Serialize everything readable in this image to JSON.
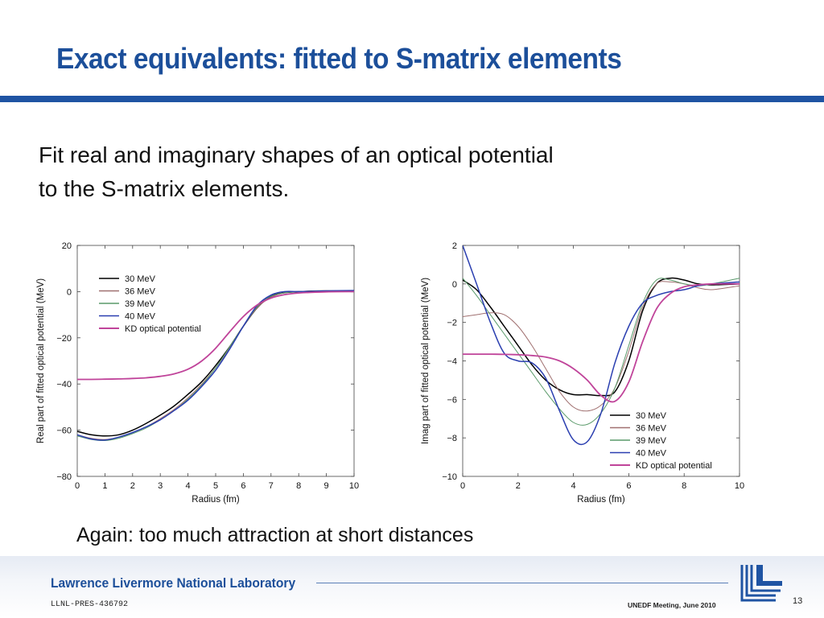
{
  "slide": {
    "title": "Exact equivalents: fitted to S-matrix elements",
    "body_lines": [
      "Fit real and imaginary shapes of an optical potential",
      "to the S-matrix elements."
    ],
    "note": "Again: too much attraction at short distances"
  },
  "footer": {
    "lab_name": "Lawrence Livermore National Laboratory",
    "doc_id": "LLNL-PRES-436792",
    "meeting": "UNEDF Meeting, June 2010",
    "page": "13",
    "logo_icon": "llnl-logo-icon",
    "brand_color": "#1c4f9a"
  },
  "chart_data": [
    {
      "type": "line",
      "xlabel": "Radius (fm)",
      "ylabel": "Real part of fitted optical potential (MeV)",
      "xlim": [
        0,
        10
      ],
      "ylim": [
        -80,
        20
      ],
      "xticks": [
        0,
        1,
        2,
        3,
        4,
        5,
        6,
        7,
        8,
        9,
        10
      ],
      "yticks": [
        20,
        0,
        -20,
        -40,
        -60,
        -80
      ],
      "ytick_labels": [
        "20",
        "0",
        "−20",
        "−40",
        "−60",
        "−80"
      ],
      "grid": false,
      "legend_position": "top-left",
      "series": [
        {
          "name": "30 MeV",
          "color": "#000000",
          "x": [
            0,
            0.5,
            1,
            1.5,
            2,
            2.5,
            3,
            3.5,
            4,
            4.5,
            5,
            5.5,
            6,
            6.5,
            7,
            7.5,
            8,
            9,
            10
          ],
          "y": [
            -60.5,
            -62,
            -62.5,
            -62,
            -60,
            -57,
            -53.5,
            -49.5,
            -44.5,
            -39,
            -32,
            -24,
            -15,
            -7,
            -2,
            -0.5,
            0,
            0.3,
            0
          ]
        },
        {
          "name": "36 MeV",
          "color": "#a07070",
          "x": [
            0,
            0.5,
            1,
            1.5,
            2,
            2.5,
            3,
            3.5,
            4,
            4.5,
            5,
            5.5,
            6,
            6.5,
            7,
            7.5,
            8,
            9,
            10
          ],
          "y": [
            -62,
            -63.5,
            -64,
            -63,
            -61,
            -58.5,
            -55,
            -51,
            -46,
            -40,
            -33,
            -24.5,
            -15,
            -7,
            -2.5,
            -0.5,
            0,
            0.3,
            0.5
          ]
        },
        {
          "name": "39 MeV",
          "color": "#5a9a6a",
          "x": [
            0,
            0.5,
            1,
            1.5,
            2,
            2.5,
            3,
            3.5,
            4,
            4.5,
            5,
            5.5,
            6,
            6.5,
            7,
            7.5,
            8,
            9,
            10
          ],
          "y": [
            -62.5,
            -64,
            -64.5,
            -63.5,
            -61.5,
            -59,
            -55.5,
            -51.5,
            -46.5,
            -40.5,
            -33,
            -24,
            -15,
            -6.5,
            -2,
            -0.5,
            0,
            0.3,
            0.5
          ]
        },
        {
          "name": "40 MeV",
          "color": "#2b3fb0",
          "x": [
            0,
            0.5,
            1,
            1.5,
            2,
            2.5,
            3,
            3.5,
            4,
            4.5,
            5,
            5.5,
            6,
            6.5,
            7,
            7.5,
            8,
            9,
            10
          ],
          "y": [
            -62,
            -63.8,
            -64.3,
            -63,
            -61,
            -58.5,
            -55.5,
            -51.5,
            -47,
            -41,
            -34,
            -25,
            -15,
            -6,
            -1.5,
            0,
            0,
            0.3,
            0.5
          ]
        },
        {
          "name": "KD optical potential",
          "color": "#c0449a",
          "x": [
            0,
            0.5,
            1,
            1.5,
            2,
            2.5,
            3,
            3.5,
            4,
            4.5,
            5,
            5.5,
            6,
            6.5,
            7,
            7.5,
            8,
            9,
            10
          ],
          "y": [
            -38,
            -38,
            -37.9,
            -37.8,
            -37.6,
            -37.3,
            -36.7,
            -35.6,
            -33.6,
            -30,
            -24.5,
            -17.5,
            -10.8,
            -5.8,
            -2.8,
            -1.3,
            -0.6,
            -0.1,
            0
          ]
        }
      ]
    },
    {
      "type": "line",
      "xlabel": "Radius (fm)",
      "ylabel": "Imag part of fitted optical potential (MeV)",
      "xlim": [
        0,
        10
      ],
      "ylim": [
        -10,
        2
      ],
      "xticks": [
        0,
        2,
        4,
        6,
        8,
        10
      ],
      "yticks": [
        2,
        0,
        -2,
        -4,
        -6,
        -8,
        -10
      ],
      "ytick_labels": [
        "2",
        "0",
        "−2",
        "−4",
        "−6",
        "−8",
        "−10"
      ],
      "grid": false,
      "legend_position": "bottom-right",
      "series": [
        {
          "name": "30 MeV",
          "color": "#000000",
          "x": [
            0,
            0.5,
            1,
            1.5,
            2,
            2.5,
            3,
            3.5,
            4,
            4.5,
            5,
            5.5,
            6,
            6.5,
            7,
            7.5,
            8,
            8.5,
            9,
            10
          ],
          "y": [
            0.2,
            -0.3,
            -1.2,
            -2.2,
            -3.2,
            -4.2,
            -5.0,
            -5.5,
            -5.75,
            -5.75,
            -5.8,
            -5.6,
            -4.0,
            -1.4,
            0.0,
            0.3,
            0.2,
            0.0,
            -0.05,
            0.0
          ]
        },
        {
          "name": "36 MeV",
          "color": "#a07070",
          "x": [
            0,
            0.5,
            1,
            1.5,
            2,
            2.5,
            3,
            3.5,
            4,
            4.5,
            5,
            5.5,
            6,
            6.5,
            7,
            7.5,
            8,
            8.5,
            9,
            10
          ],
          "y": [
            -1.7,
            -1.6,
            -1.5,
            -1.6,
            -2.2,
            -3.2,
            -4.4,
            -5.6,
            -6.4,
            -6.6,
            -6.3,
            -5.4,
            -3.5,
            -1.2,
            0.0,
            0.1,
            0.0,
            -0.2,
            -0.3,
            -0.1
          ]
        },
        {
          "name": "39 MeV",
          "color": "#5a9a6a",
          "x": [
            0,
            0.5,
            1,
            1.5,
            2,
            2.5,
            3,
            3.5,
            4,
            4.5,
            5,
            5.5,
            6,
            6.5,
            7,
            7.5,
            8,
            8.5,
            9,
            10
          ],
          "y": [
            0.3,
            -0.6,
            -1.6,
            -2.6,
            -3.6,
            -4.6,
            -5.6,
            -6.5,
            -7.2,
            -7.3,
            -6.7,
            -5.4,
            -3.2,
            -1.0,
            0.2,
            0.2,
            0.0,
            -0.1,
            0.0,
            0.3
          ]
        },
        {
          "name": "40 MeV",
          "color": "#2b3fb0",
          "x": [
            0,
            0.5,
            1,
            1.5,
            2,
            2.5,
            3,
            3.5,
            4,
            4.5,
            5,
            5.5,
            6,
            6.5,
            7,
            7.5,
            8,
            8.5,
            9,
            10
          ],
          "y": [
            2.0,
            0.0,
            -2.0,
            -3.6,
            -4.0,
            -4.1,
            -4.9,
            -6.6,
            -8.1,
            -8.2,
            -6.7,
            -4.1,
            -2.2,
            -1.0,
            -0.6,
            -0.4,
            -0.3,
            -0.1,
            0.0,
            0.1
          ]
        },
        {
          "name": "KD optical potential",
          "color": "#c0449a",
          "x": [
            0,
            0.5,
            1,
            1.5,
            2,
            2.5,
            3,
            3.5,
            4,
            4.5,
            5,
            5.5,
            6,
            6.5,
            7,
            7.5,
            8,
            8.5,
            9,
            10
          ],
          "y": [
            -3.65,
            -3.65,
            -3.65,
            -3.66,
            -3.68,
            -3.72,
            -3.8,
            -4.0,
            -4.4,
            -5.0,
            -5.8,
            -6.1,
            -5.1,
            -3.0,
            -1.3,
            -0.5,
            -0.15,
            -0.05,
            0.0,
            0.0
          ]
        }
      ]
    }
  ]
}
